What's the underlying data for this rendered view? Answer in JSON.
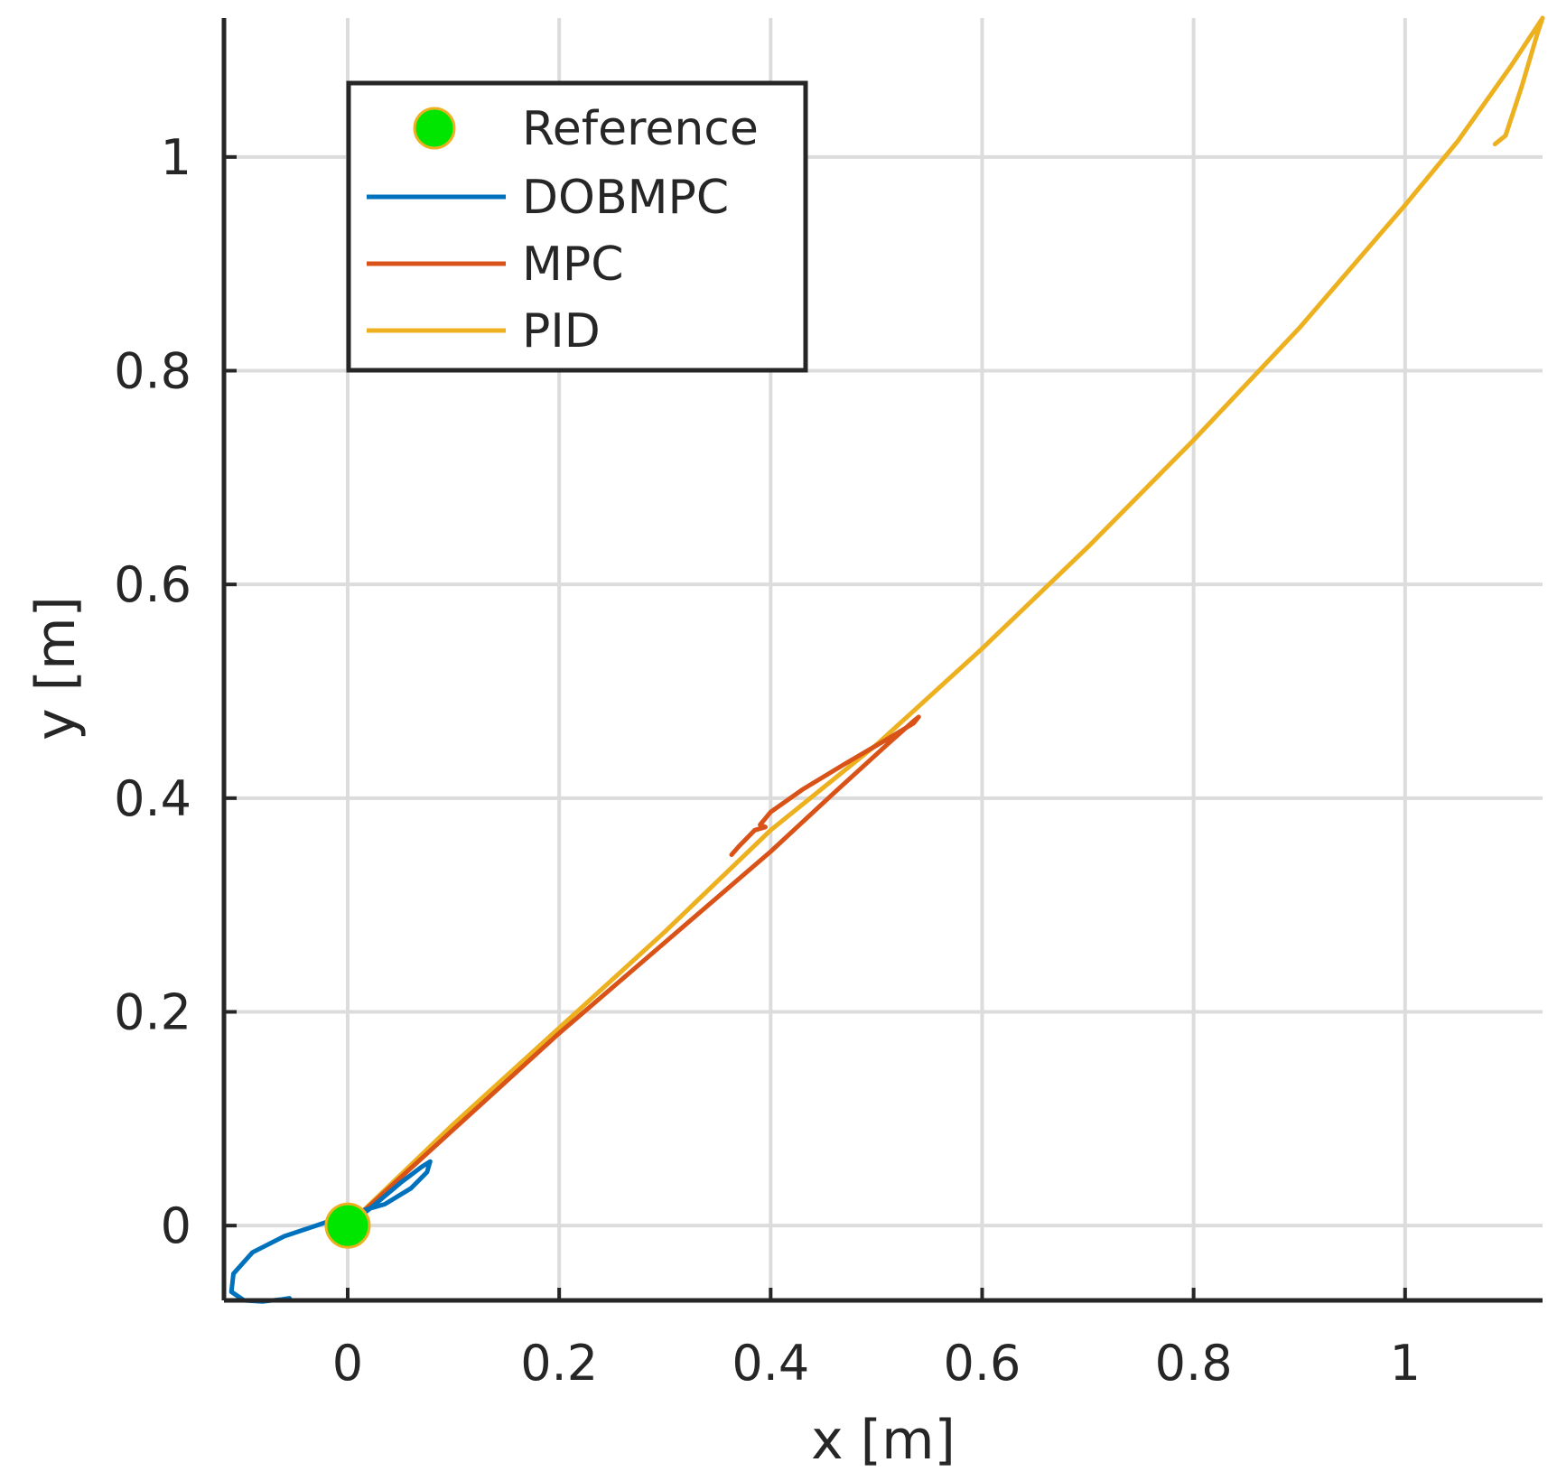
{
  "chart_data": {
    "type": "line",
    "xlabel": "x [m]",
    "ylabel": "y [m]",
    "xlim": [
      -0.117,
      1.13
    ],
    "ylim": [
      -0.07,
      1.13
    ],
    "xticks": [
      0,
      0.2,
      0.4,
      0.6,
      0.8,
      1
    ],
    "xtick_labels": [
      "0",
      "0.2",
      "0.4",
      "0.6",
      "0.8",
      "1"
    ],
    "yticks": [
      0,
      0.2,
      0.4,
      0.6,
      0.8,
      1
    ],
    "ytick_labels": [
      "0",
      "0.2",
      "0.4",
      "0.6",
      "0.8",
      "1"
    ],
    "grid": true,
    "legend_position": "top-left",
    "legend": [
      "Reference",
      "DOBMPC",
      "MPC",
      "PID"
    ],
    "reference": {
      "name": "Reference",
      "x": 0,
      "y": 0,
      "color": "#00e600",
      "edge_color": "#edb120"
    },
    "series": [
      {
        "name": "DOBMPC",
        "color": "#0072bd",
        "points": [
          [
            0.0,
            0.0
          ],
          [
            0.02,
            0.015
          ],
          [
            0.05,
            0.04
          ],
          [
            0.07,
            0.055
          ],
          [
            0.078,
            0.06
          ],
          [
            0.075,
            0.05
          ],
          [
            0.06,
            0.035
          ],
          [
            0.035,
            0.02
          ],
          [
            0.0,
            0.01
          ],
          [
            -0.03,
            0.0
          ],
          [
            -0.06,
            -0.01
          ],
          [
            -0.09,
            -0.025
          ],
          [
            -0.108,
            -0.045
          ],
          [
            -0.11,
            -0.062
          ],
          [
            -0.098,
            -0.07
          ],
          [
            -0.08,
            -0.071
          ],
          [
            -0.062,
            -0.069
          ],
          [
            -0.055,
            -0.068
          ]
        ]
      },
      {
        "name": "MPC",
        "color": "#d95319",
        "points": [
          [
            0.0,
            0.0
          ],
          [
            0.1,
            0.09
          ],
          [
            0.2,
            0.18
          ],
          [
            0.3,
            0.265
          ],
          [
            0.4,
            0.35
          ],
          [
            0.46,
            0.405
          ],
          [
            0.51,
            0.45
          ],
          [
            0.535,
            0.472
          ],
          [
            0.54,
            0.476
          ],
          [
            0.535,
            0.47
          ],
          [
            0.51,
            0.455
          ],
          [
            0.47,
            0.432
          ],
          [
            0.43,
            0.408
          ],
          [
            0.4,
            0.387
          ],
          [
            0.39,
            0.375
          ],
          [
            0.395,
            0.373
          ],
          [
            0.385,
            0.37
          ],
          [
            0.37,
            0.355
          ],
          [
            0.363,
            0.347
          ]
        ]
      },
      {
        "name": "PID",
        "color": "#edb120",
        "points": [
          [
            0.0,
            0.0
          ],
          [
            0.1,
            0.095
          ],
          [
            0.2,
            0.185
          ],
          [
            0.3,
            0.275
          ],
          [
            0.4,
            0.37
          ],
          [
            0.5,
            0.45
          ],
          [
            0.6,
            0.54
          ],
          [
            0.7,
            0.635
          ],
          [
            0.8,
            0.735
          ],
          [
            0.9,
            0.84
          ],
          [
            1.0,
            0.955
          ],
          [
            1.05,
            1.015
          ],
          [
            1.1,
            1.085
          ],
          [
            1.13,
            1.13
          ],
          [
            1.125,
            1.115
          ],
          [
            1.11,
            1.065
          ],
          [
            1.095,
            1.02
          ],
          [
            1.085,
            1.012
          ]
        ]
      }
    ]
  }
}
